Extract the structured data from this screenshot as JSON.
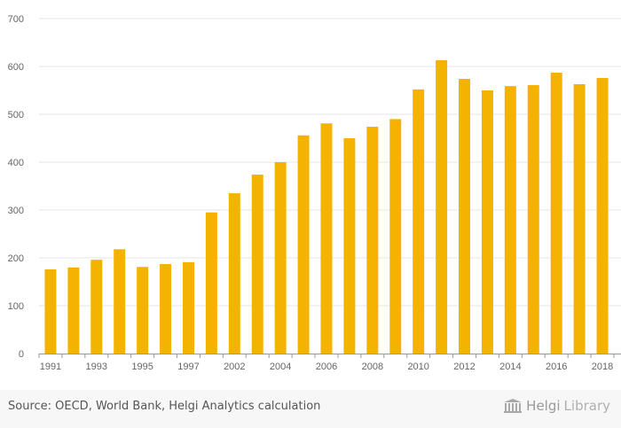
{
  "chart_data": {
    "type": "bar",
    "categories": [
      "1991",
      "1992",
      "1993",
      "1994",
      "1995",
      "1996",
      "1997",
      "1998",
      "2002",
      "2003",
      "2004",
      "2005",
      "2006",
      "2007",
      "2008",
      "2009",
      "2010",
      "2011",
      "2012",
      "2013",
      "2014",
      "2015",
      "2016",
      "2017",
      "2018"
    ],
    "x_tick_labels": [
      "1991",
      "1993",
      "1995",
      "1997",
      "2002",
      "2004",
      "2006",
      "2008",
      "2010",
      "2012",
      "2014",
      "2016",
      "2018"
    ],
    "values": [
      176,
      180,
      196,
      218,
      181,
      187,
      191,
      295,
      335,
      374,
      400,
      456,
      481,
      450,
      474,
      490,
      552,
      613,
      574,
      550,
      559,
      561,
      587,
      563,
      576
    ],
    "ylim": [
      0,
      700
    ],
    "yticks": [
      0,
      100,
      200,
      300,
      400,
      500,
      600,
      700
    ],
    "grid": true,
    "bar_color": "#f5b301",
    "title": "",
    "xlabel": "",
    "ylabel": ""
  },
  "footer": {
    "source": "Source: OECD, World Bank, Helgi Analytics calculation",
    "brand_main": "Helgi",
    "brand_sub": "Library"
  }
}
